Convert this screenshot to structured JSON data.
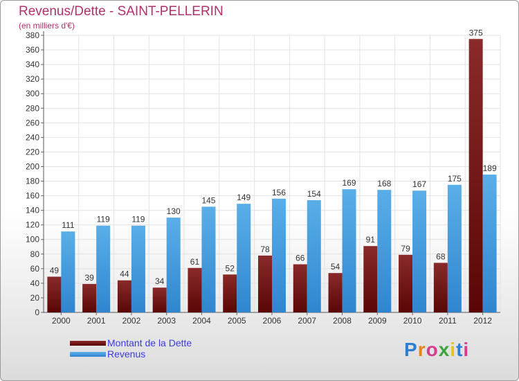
{
  "header": {
    "title": "Revenus/Dette - SAINT-PELLERIN",
    "subtitle": "(en milliers d'€)"
  },
  "colors": {
    "dette": "#7a1010",
    "revenus": "#4aa3e6",
    "title": "#b0306a",
    "legend_text": "#3a3ae8"
  },
  "chart_data": {
    "type": "bar",
    "title": "Revenus/Dette - SAINT-PELLERIN",
    "subtitle": "(en milliers d'€)",
    "categories": [
      "2000",
      "2001",
      "2002",
      "2003",
      "2004",
      "2005",
      "2006",
      "2007",
      "2008",
      "2009",
      "2010",
      "2011",
      "2012"
    ],
    "series": [
      {
        "name": "Montant de la Dette",
        "values": [
          49,
          39,
          44,
          34,
          61,
          52,
          78,
          66,
          54,
          91,
          79,
          68,
          375
        ]
      },
      {
        "name": "Revenus",
        "values": [
          111,
          119,
          119,
          130,
          145,
          149,
          156,
          154,
          169,
          168,
          167,
          175,
          189
        ]
      }
    ],
    "ylim": [
      0,
      380
    ],
    "ytick_step": 20,
    "grid": true,
    "legend_position": "bottom-left"
  },
  "legend": {
    "items": [
      {
        "label": "Montant de la Dette"
      },
      {
        "label": "Revenus"
      }
    ]
  },
  "logo": {
    "text": "Proxiti"
  }
}
